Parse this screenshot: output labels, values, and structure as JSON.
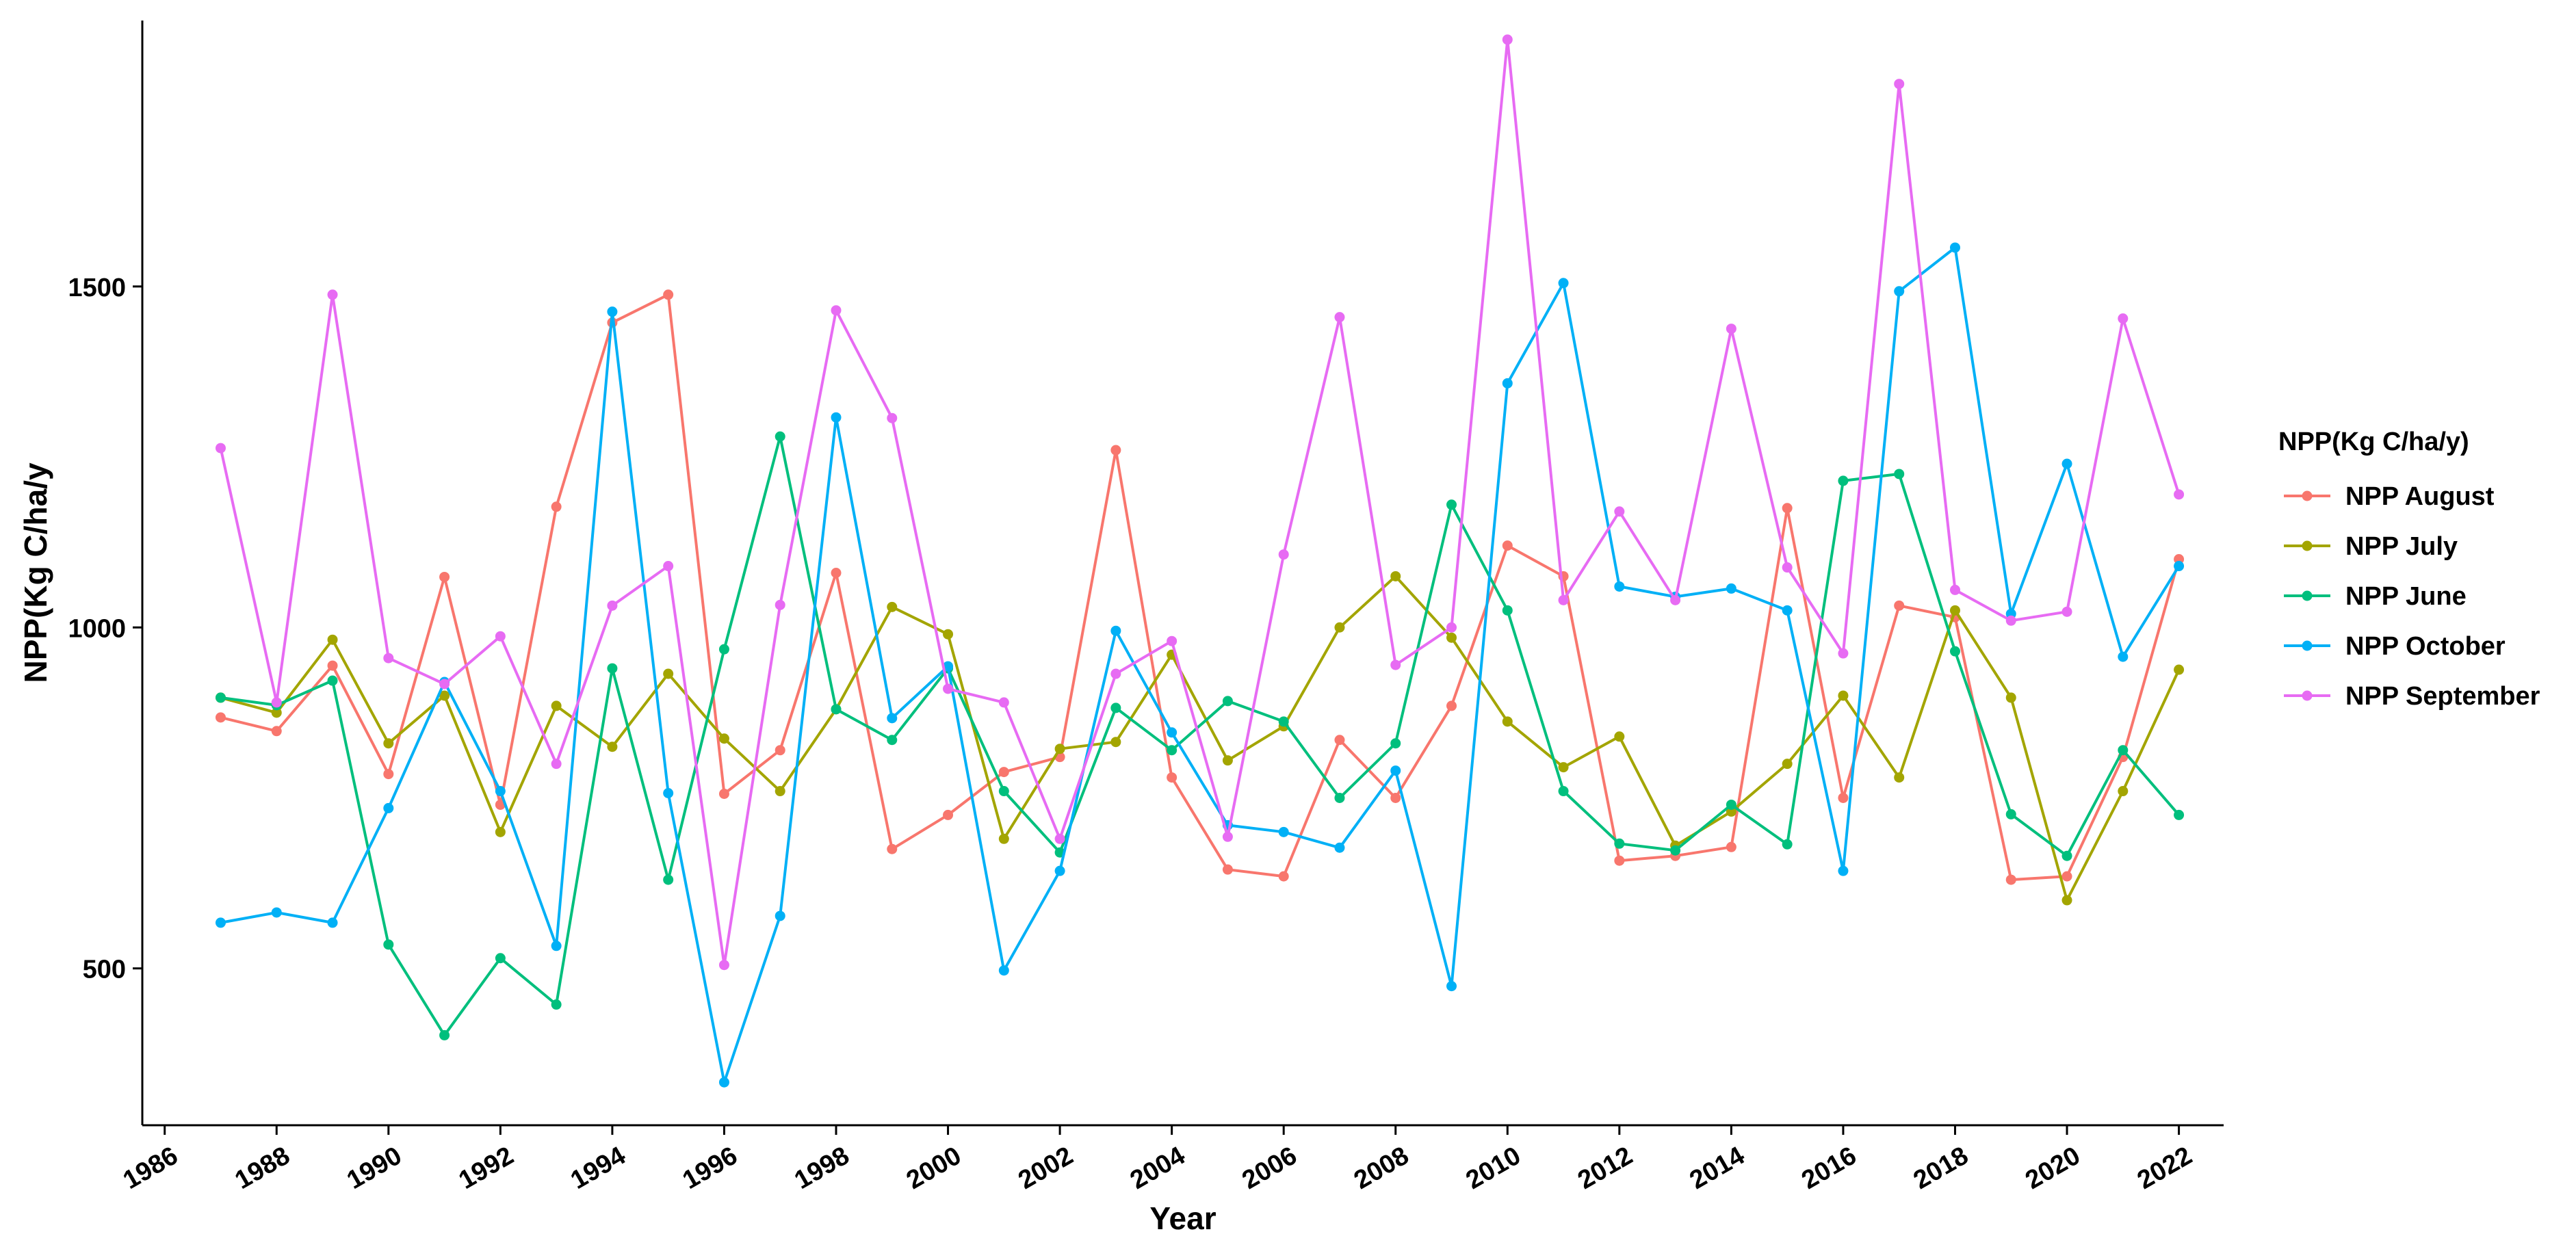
{
  "chart_data": {
    "type": "line",
    "title": "",
    "xlabel": "Year",
    "ylabel": "NPP(Kg C/ha/y",
    "legend_title": "NPP(Kg C/ha/y)",
    "legend_position": "right",
    "grid": false,
    "xlim": [
      1985.6,
      2022.8
    ],
    "ylim": [
      270,
      1890
    ],
    "x_ticks": [
      1986,
      1988,
      1990,
      1992,
      1994,
      1996,
      1998,
      2000,
      2002,
      2004,
      2006,
      2008,
      2010,
      2012,
      2014,
      2016,
      2018,
      2020,
      2022
    ],
    "x_tick_labels": [
      "1986",
      "1988",
      "1990",
      "1992",
      "1994",
      "1996",
      "1998",
      "2000",
      "2002",
      "2004",
      "2006",
      "2008",
      "2010",
      "2012",
      "2014",
      "2016",
      "2018",
      "2020",
      "2022"
    ],
    "y_ticks": [
      500,
      1000,
      1500
    ],
    "y_tick_labels": [
      "500",
      "1000",
      "1500"
    ],
    "x": [
      1987,
      1988,
      1989,
      1990,
      1991,
      1992,
      1993,
      1994,
      1995,
      1996,
      1997,
      1998,
      1999,
      2000,
      2001,
      2002,
      2003,
      2004,
      2005,
      2006,
      2007,
      2008,
      2009,
      2010,
      2011,
      2012,
      2013,
      2014,
      2015,
      2016,
      2017,
      2018,
      2019,
      2020,
      2021,
      2022
    ],
    "series": [
      {
        "name": "NPP August",
        "color": "#F8766D",
        "values": [
          868,
          848,
          944,
          785,
          1074,
          740,
          1177,
          1447,
          1488,
          756,
          820,
          1080,
          675,
          725,
          788,
          810,
          1260,
          780,
          645,
          635,
          835,
          750,
          885,
          1120,
          1075,
          658,
          665,
          678,
          1175,
          750,
          1032,
          1015,
          630,
          635,
          810,
          1100
        ]
      },
      {
        "name": "NPP July",
        "color": "#A3A500",
        "values": [
          897,
          875,
          982,
          830,
          900,
          700,
          885,
          825,
          932,
          837,
          760,
          880,
          1030,
          990,
          690,
          822,
          832,
          960,
          805,
          855,
          1000,
          1075,
          985,
          862,
          795,
          840,
          680,
          730,
          800,
          900,
          780,
          1025,
          897,
          600,
          760,
          938
        ]
      },
      {
        "name": "NPP June",
        "color": "#00BF7D",
        "values": [
          897,
          886,
          922,
          535,
          402,
          515,
          447,
          940,
          630,
          968,
          1280,
          880,
          835,
          940,
          760,
          670,
          882,
          820,
          892,
          862,
          750,
          830,
          1180,
          1025,
          760,
          683,
          673,
          740,
          682,
          1215,
          1225,
          965,
          726,
          665,
          820,
          725
        ]
      },
      {
        "name": "NPP October",
        "color": "#00B0F6",
        "values": [
          567,
          582,
          567,
          735,
          920,
          760,
          533,
          1463,
          757,
          333,
          577,
          1308,
          867,
          943,
          497,
          643,
          995,
          846,
          710,
          700,
          677,
          790,
          474,
          1358,
          1505,
          1060,
          1045,
          1057,
          1025,
          643,
          1493,
          1557,
          1020,
          1240,
          957,
          1090
        ]
      },
      {
        "name": "NPP September",
        "color": "#E76BF3",
        "values": [
          1263,
          890,
          1488,
          955,
          917,
          987,
          800,
          1032,
          1090,
          505,
          1033,
          1465,
          1307,
          910,
          890,
          690,
          932,
          980,
          693,
          1107,
          1455,
          945,
          1000,
          1862,
          1040,
          1170,
          1040,
          1438,
          1088,
          962,
          1797,
          1055,
          1010,
          1023,
          1453,
          1195
        ]
      }
    ]
  }
}
